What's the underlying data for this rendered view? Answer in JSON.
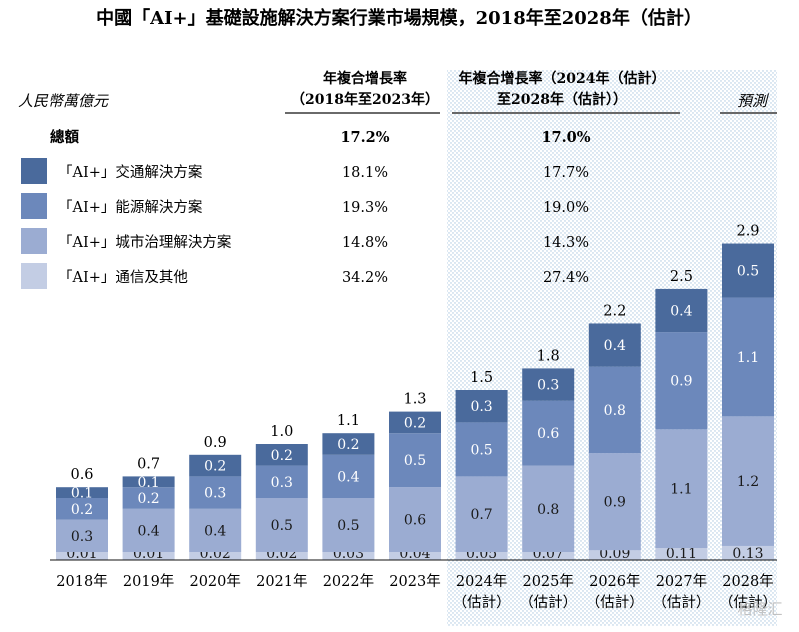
{
  "chart_data": {
    "type": "bar",
    "stacked": true,
    "title": "中國「AI+」基礎設施解決方案行業市場規模，2018年至2028年（估計）",
    "unit_label": "人民幣萬億元",
    "forecast_label": "預測",
    "cagr_headers": {
      "historical_line1": "年複合增長率",
      "historical_line2": "（2018年至2023年）",
      "forecast_line1": "年複合增長率（2024年（估計）",
      "forecast_line2": "至2028年（估計））"
    },
    "cagr_rows": [
      {
        "label": "總額",
        "historical": "17.2%",
        "forecast": "17.0%",
        "bold": true
      },
      {
        "label": "「AI+」交通解決方案",
        "historical": "18.1%",
        "forecast": "17.7%",
        "color": "#4a6a9c"
      },
      {
        "label": "「AI+」能源解決方案",
        "historical": "19.3%",
        "forecast": "19.0%",
        "color": "#6c88bb"
      },
      {
        "label": "「AI+」城市治理解決方案",
        "historical": "14.8%",
        "forecast": "14.3%",
        "color": "#9bacd2"
      },
      {
        "label": "「AI+」通信及其他",
        "historical": "34.2%",
        "forecast": "27.4%",
        "color": "#c3cde4"
      }
    ],
    "categories": [
      [
        "2018年"
      ],
      [
        "2019年"
      ],
      [
        "2020年"
      ],
      [
        "2021年"
      ],
      [
        "2022年"
      ],
      [
        "2023年"
      ],
      [
        "2024年",
        "（估計）"
      ],
      [
        "2025年",
        "（估計）"
      ],
      [
        "2026年",
        "（估計）"
      ],
      [
        "2027年",
        "（估計）"
      ],
      [
        "2028年",
        "（估計）"
      ]
    ],
    "totals": [
      "0.6",
      "0.7",
      "0.9",
      "1.0",
      "1.1",
      "1.3",
      "1.5",
      "1.8",
      "2.2",
      "2.5",
      "2.9"
    ],
    "series": [
      {
        "name": "「AI+」通信及其他",
        "color": "#c3cde4",
        "values": [
          0.01,
          0.01,
          0.02,
          0.02,
          0.03,
          0.04,
          0.05,
          0.07,
          0.09,
          0.11,
          0.13
        ],
        "labels": [
          "0.01",
          "0.01",
          "0.02",
          "0.02",
          "0.03",
          "0.04",
          "0.05",
          "0.07",
          "0.09",
          "0.11",
          "0.13"
        ]
      },
      {
        "name": "「AI+」城市治理解決方案",
        "color": "#9bacd2",
        "values": [
          0.3,
          0.4,
          0.4,
          0.5,
          0.5,
          0.6,
          0.7,
          0.8,
          0.9,
          1.1,
          1.2
        ],
        "labels": [
          "0.3",
          "0.4",
          "0.4",
          "0.5",
          "0.5",
          "0.6",
          "0.7",
          "0.8",
          "0.9",
          "1.1",
          "1.2"
        ]
      },
      {
        "name": "「AI+」能源解決方案",
        "color": "#6c88bb",
        "values": [
          0.2,
          0.2,
          0.3,
          0.3,
          0.4,
          0.5,
          0.5,
          0.6,
          0.8,
          0.9,
          1.1
        ],
        "labels": [
          "0.2",
          "0.2",
          "0.3",
          "0.3",
          "0.4",
          "0.5",
          "0.5",
          "0.6",
          "0.8",
          "0.9",
          "1.1"
        ]
      },
      {
        "name": "「AI+」交通解決方案",
        "color": "#4a6a9c",
        "values": [
          0.1,
          0.1,
          0.2,
          0.2,
          0.2,
          0.2,
          0.3,
          0.3,
          0.4,
          0.4,
          0.5
        ],
        "labels": [
          "0.1",
          "0.1",
          "0.2",
          "0.2",
          "0.2",
          "0.2",
          "0.3",
          "0.3",
          "0.4",
          "0.4",
          "0.5"
        ]
      }
    ],
    "forecast_start_index": 6,
    "ylim": [
      0,
      3.0
    ],
    "legend_position": "top-left",
    "grid": false
  },
  "watermark": "格隆汇"
}
